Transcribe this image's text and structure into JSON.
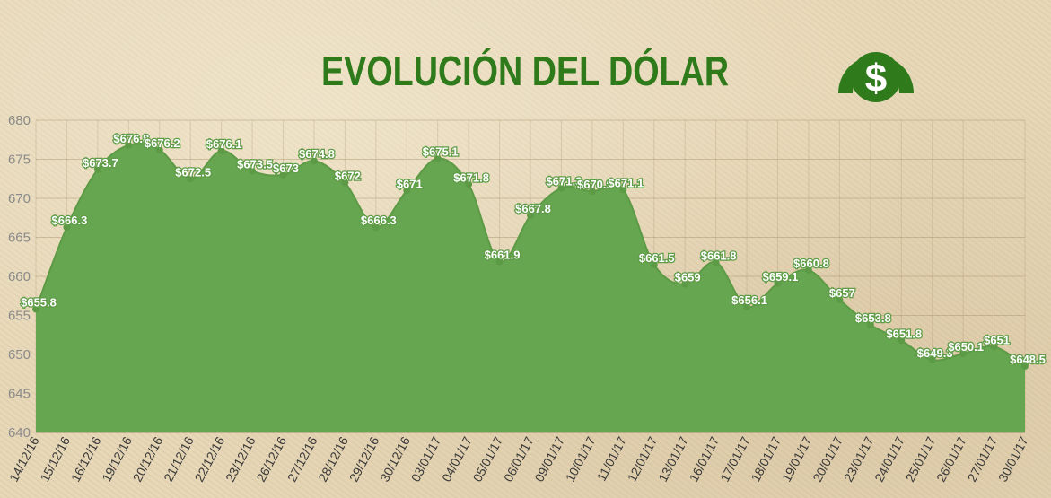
{
  "chart_data": {
    "type": "area",
    "title": "EVOLUCIÓN DEL DÓLAR",
    "xlabel": "",
    "ylabel": "",
    "ylim": [
      640,
      680
    ],
    "yticks": [
      640,
      645,
      650,
      655,
      660,
      665,
      670,
      675,
      680
    ],
    "grid": true,
    "fill_color": "#67a650",
    "title_color": "#2f7b1c",
    "label_prefix": "$",
    "x_tick_labels": [
      "14/12/16",
      "15/12/16",
      "16/12/16",
      "19/12/16",
      "20/12/16",
      "21/12/16",
      "22/12/16",
      "23/12/16",
      "26/12/16",
      "27/12/16",
      "28/12/16",
      "29/12/16",
      "30/12/16",
      "03/01/17",
      "04/01/17",
      "05/01/17",
      "06/01/17",
      "09/01/17",
      "10/01/17",
      "11/01/17",
      "12/01/17",
      "13/01/17",
      "16/01/17",
      "17/01/17",
      "18/01/17",
      "19/01/17",
      "20/01/17",
      "23/01/17",
      "24/01/17",
      "25/01/17",
      "26/01/17",
      "27/01/17",
      "30/01/17"
    ],
    "values": [
      655.8,
      666.3,
      673.7,
      676.8,
      676.2,
      672.5,
      676.1,
      673.5,
      673,
      674.8,
      672,
      666.3,
      671,
      675.1,
      671.8,
      661.9,
      667.8,
      671.3,
      670.9,
      671.1,
      661.5,
      659,
      661.8,
      656.1,
      659.1,
      660.8,
      657,
      653.8,
      651.8,
      649.3,
      650.1,
      651,
      648.5
    ]
  },
  "logo": {
    "icon": "dollar-icon",
    "glyph": "$"
  }
}
